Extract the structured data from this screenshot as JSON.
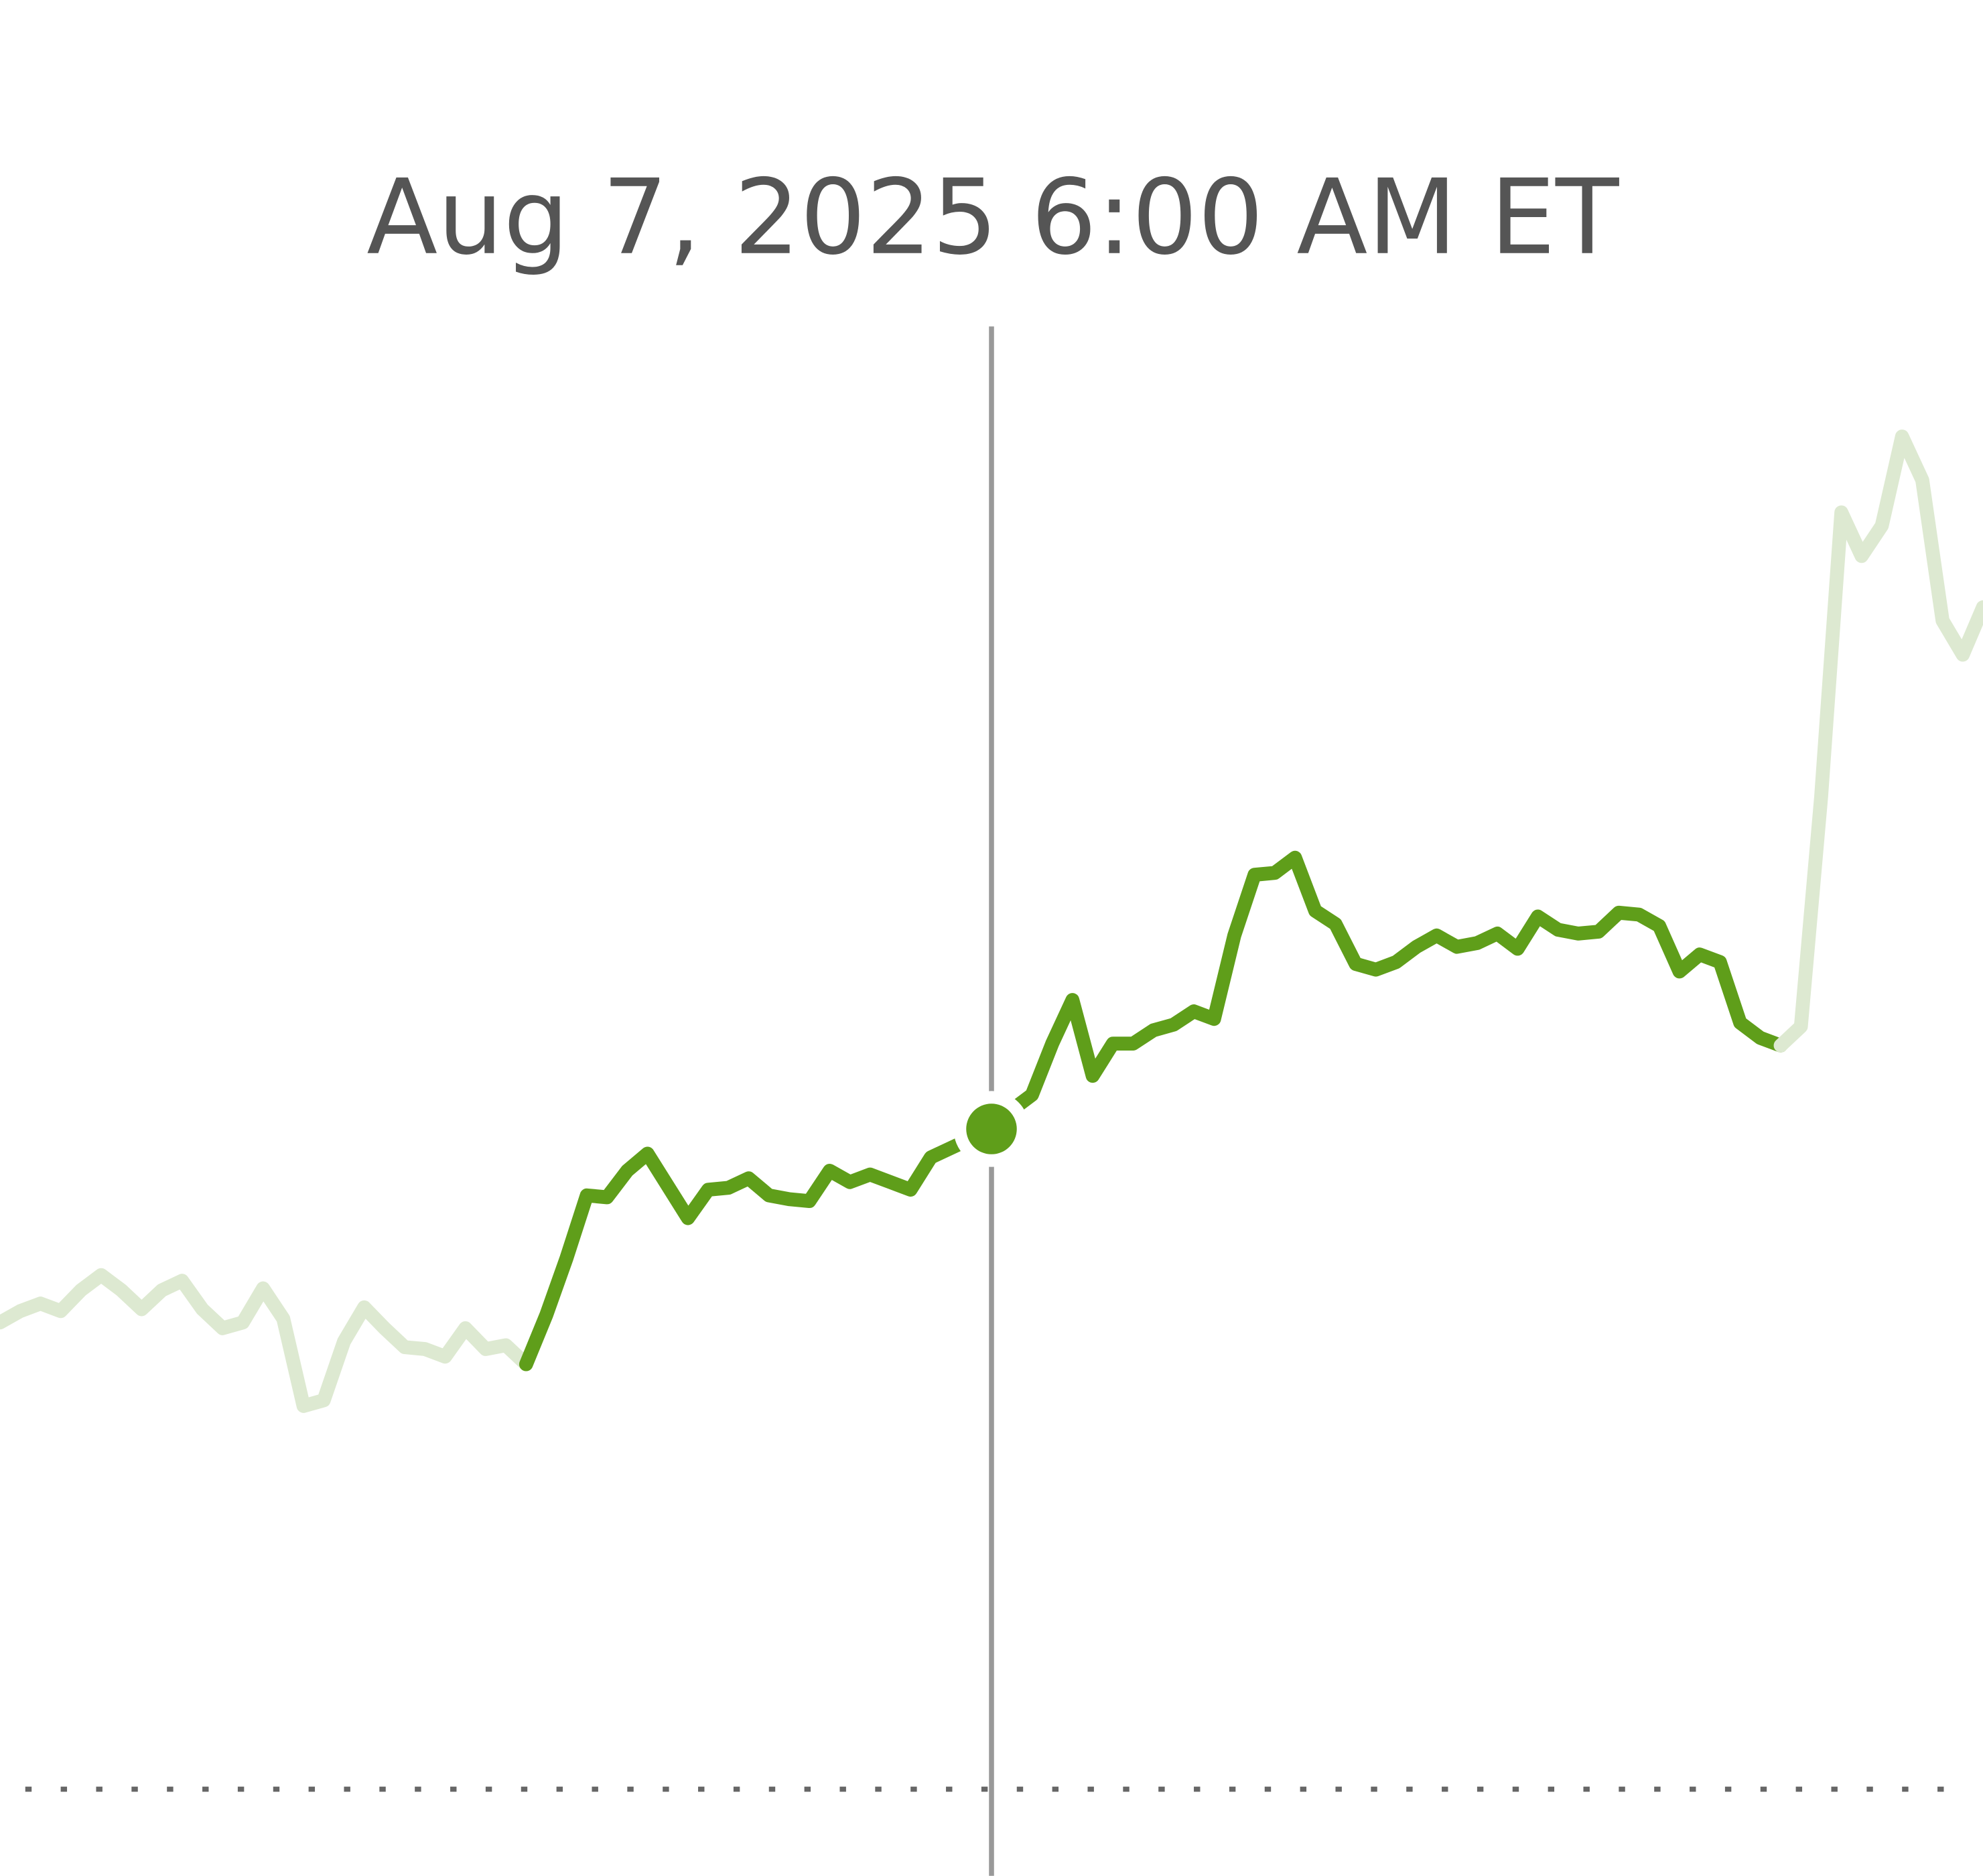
{
  "chart_data": {
    "type": "line",
    "title": "Aug 7, 2025 6:00 AM ET",
    "xlim": [
      0,
      98
    ],
    "ylim": [
      0,
      100
    ],
    "baseline": 5.7,
    "hover_x": 49,
    "hover_series": 1,
    "hover_index": 23,
    "series": [
      {
        "color": "#dde9d1",
        "x": [
          0,
          1,
          2,
          3,
          4,
          5,
          6,
          7,
          8,
          9,
          10,
          11,
          12,
          13,
          14,
          15,
          16,
          17,
          18,
          19,
          20,
          21,
          22,
          23,
          24,
          25,
          26
        ],
        "values": [
          30.3,
          30.9,
          31.3,
          30.9,
          32,
          32.8,
          32,
          31,
          32,
          32.5,
          31,
          30,
          30.3,
          32.1,
          30.5,
          25.9,
          26.2,
          29.3,
          31.1,
          30,
          29,
          28.9,
          28.5,
          30,
          28.9,
          29.1,
          28.1
        ]
      },
      {
        "color": "#5f9e1a",
        "x": [
          26,
          27,
          28,
          29,
          30,
          31,
          32,
          33,
          34,
          35,
          36,
          37,
          38,
          39,
          40,
          41,
          42,
          43,
          44,
          45,
          46,
          47,
          48,
          49,
          50,
          51,
          52,
          53,
          54,
          55,
          56,
          57,
          58,
          59,
          60,
          61,
          62,
          63,
          64,
          65,
          66,
          67,
          68,
          69,
          70,
          71,
          72,
          73,
          74,
          75,
          76,
          77,
          78,
          79,
          80,
          81,
          82,
          83,
          84,
          85,
          86,
          87,
          88
        ],
        "values": [
          28.1,
          30.7,
          33.7,
          37,
          36.9,
          38.3,
          39.2,
          37.5,
          35.8,
          37.3,
          37.4,
          37.9,
          37,
          36.8,
          36.7,
          38.3,
          37.7,
          38.1,
          37.7,
          37.3,
          39,
          39.5,
          40,
          40.5,
          41.5,
          42.3,
          45,
          47.3,
          43.3,
          45,
          45,
          45.7,
          46,
          46.7,
          46.3,
          50.7,
          53.9,
          54,
          54.8,
          52,
          51.3,
          49.2,
          48.9,
          49.3,
          50.1,
          50.7,
          50.1,
          50.3,
          50.8,
          50,
          51.7,
          51,
          50.8,
          50.9,
          51.9,
          51.8,
          51.2,
          48.8,
          49.7,
          49.3,
          46.1,
          45.3,
          44.9
        ]
      },
      {
        "color": "#dde9d1",
        "x": [
          88,
          89,
          90,
          91,
          92,
          93,
          94,
          95,
          96,
          97,
          98
        ],
        "values": [
          44.9,
          45.9,
          58,
          73,
          70.7,
          72.3,
          77,
          74.7,
          67.3,
          65.5,
          68
        ]
      }
    ]
  }
}
